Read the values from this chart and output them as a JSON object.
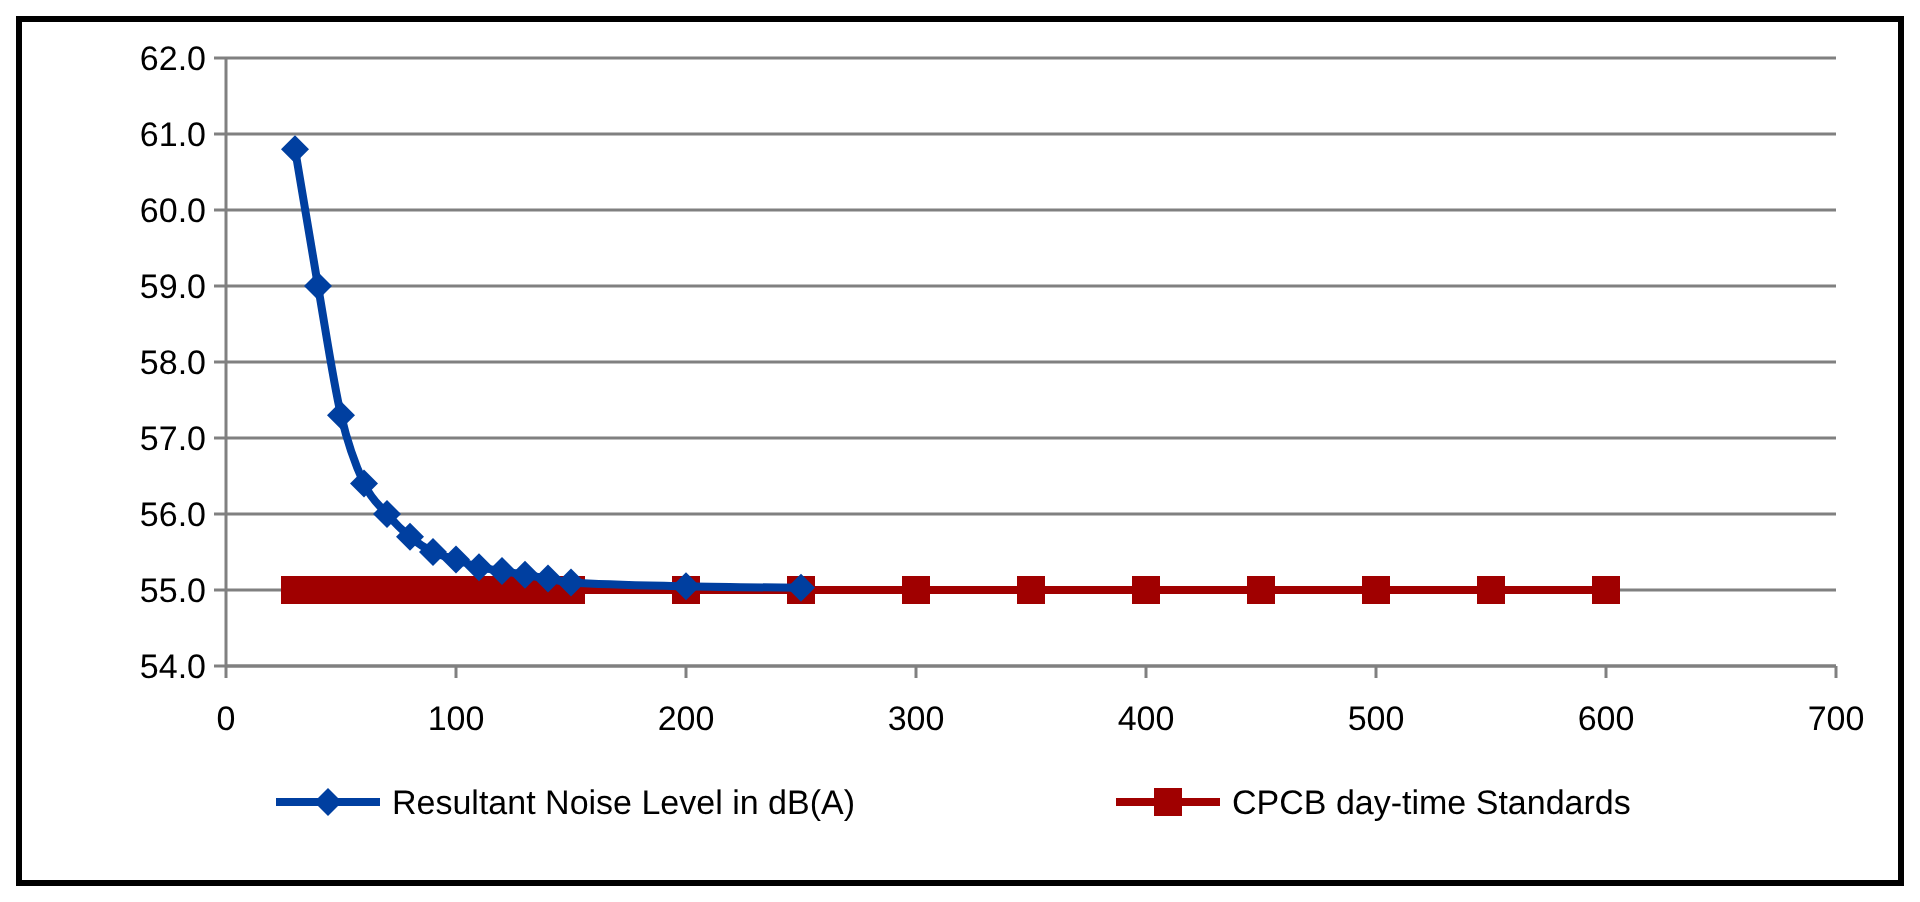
{
  "chart_data": {
    "type": "line",
    "x": [
      30,
      40,
      50,
      60,
      70,
      80,
      90,
      100,
      110,
      120,
      130,
      140,
      150,
      200,
      250,
      300,
      350,
      400,
      450,
      500,
      550,
      600
    ],
    "series": [
      {
        "name": "Resultant Noise  Level in dB(A)",
        "color": "#003fa0",
        "marker": "diamond",
        "values": [
          60.8,
          59.0,
          57.3,
          56.4,
          56.0,
          55.7,
          55.5,
          55.4,
          55.3,
          55.25,
          55.2,
          55.15,
          55.1,
          55.05,
          55.03,
          null,
          null,
          null,
          null,
          null,
          null,
          null
        ]
      },
      {
        "name": "CPCB day-time  Standards",
        "color": "#a00000",
        "marker": "square",
        "values": [
          55,
          55,
          55,
          55,
          55,
          55,
          55,
          55,
          55,
          55,
          55,
          55,
          55,
          55,
          55,
          55,
          55,
          55,
          55,
          55,
          55,
          55
        ]
      }
    ],
    "xlim": [
      0,
      700
    ],
    "xticks": [
      0,
      100,
      200,
      300,
      400,
      500,
      600,
      700
    ],
    "ylim": [
      54,
      62
    ],
    "yticks": [
      {
        "value": 54,
        "label": "54.0"
      },
      {
        "value": 55,
        "label": "55.0"
      },
      {
        "value": 56,
        "label": "56.0"
      },
      {
        "value": 57,
        "label": "57.0"
      },
      {
        "value": 58,
        "label": "58.0"
      },
      {
        "value": 59,
        "label": "59.0"
      },
      {
        "value": 60,
        "label": "60.0"
      },
      {
        "value": 61,
        "label": "61.0"
      },
      {
        "value": 62,
        "label": "62.0"
      }
    ],
    "grid": "y",
    "legend": "bottom"
  }
}
